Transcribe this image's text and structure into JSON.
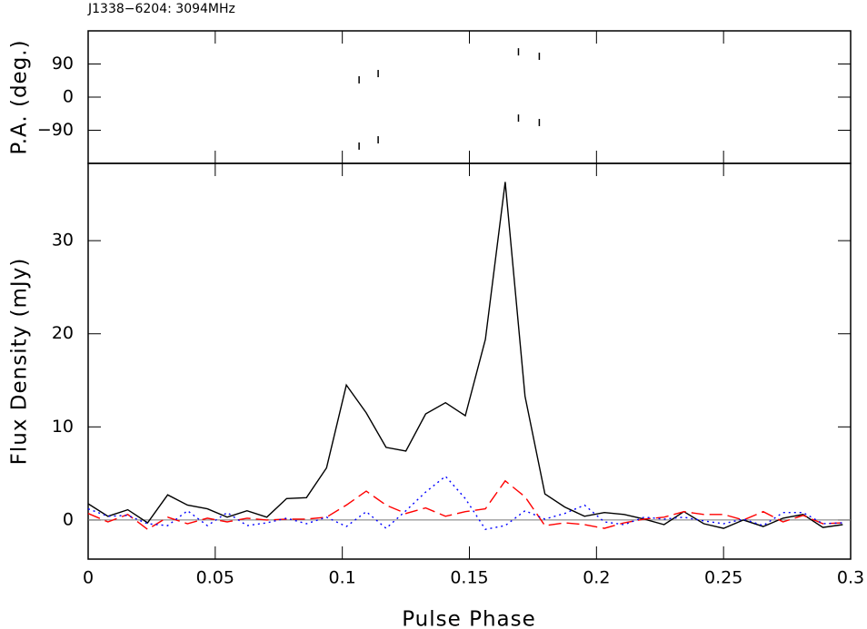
{
  "chart_data": [
    {
      "type": "scatter",
      "title": "J1338−6204: 3094MHz",
      "ylabel": "P.A. (deg.)",
      "x": [
        0.1066,
        0.1066,
        0.1141,
        0.1141,
        0.1693,
        0.1693,
        0.1775,
        0.1775
      ],
      "values": [
        47,
        -133,
        64,
        -116,
        123,
        -57,
        111,
        -69
      ],
      "color": "#000000",
      "xlim": [
        0,
        0.3
      ],
      "xticks": [
        0,
        0.05,
        0.1,
        0.15,
        0.2,
        0.25,
        0.3
      ],
      "ylim": [
        -180,
        180
      ],
      "yticks": [
        {
          "value": -90,
          "label": "−90"
        },
        0,
        90
      ]
    },
    {
      "type": "line",
      "xlabel": "Pulse Phase",
      "ylabel": "Flux Density (mJy)",
      "x": [
        0,
        0.0078,
        0.0156,
        0.0234,
        0.0313,
        0.0391,
        0.0469,
        0.0547,
        0.0625,
        0.0703,
        0.0781,
        0.0859,
        0.0938,
        0.1016,
        0.1094,
        0.1172,
        0.125,
        0.1328,
        0.1406,
        0.1484,
        0.1563,
        0.1641,
        0.1719,
        0.1797,
        0.1875,
        0.1953,
        0.2031,
        0.2109,
        0.2188,
        0.2266,
        0.2344,
        0.2422,
        0.25,
        0.2578,
        0.2656,
        0.2734,
        0.2813,
        0.2891,
        0.2969
      ],
      "series": [
        {
          "color": "#000000",
          "style": "solid",
          "values": [
            1.75,
            0.4,
            1.1,
            -0.3,
            2.7,
            1.6,
            1.2,
            0.3,
            1.0,
            0.3,
            2.3,
            2.4,
            5.6,
            14.5,
            11.5,
            7.8,
            7.4,
            11.4,
            12.6,
            11.2,
            19.4,
            36.3,
            13.3,
            2.8,
            1.4,
            0.4,
            0.8,
            0.6,
            0.1,
            -0.5,
            0.9,
            -0.4,
            -0.9,
            0,
            -0.7,
            0.2,
            0.6,
            -0.8,
            -0.5
          ]
        },
        {
          "color": "#ff0000",
          "style": "dashed",
          "values": [
            0.7,
            -0.2,
            0.6,
            -1.0,
            0.3,
            -0.4,
            0.2,
            -0.2,
            0.2,
            0,
            0.1,
            0.1,
            0.3,
            1.6,
            3.1,
            1.6,
            0.7,
            1.3,
            0.4,
            0.9,
            1.2,
            4.2,
            2.5,
            -0.6,
            -0.3,
            -0.5,
            -0.9,
            -0.3,
            0.1,
            0.3,
            0.9,
            0.6,
            0.6,
            0,
            0.9,
            -0.2,
            0.5,
            -0.4,
            -0.3
          ]
        },
        {
          "color": "#0000ff",
          "style": "dotted",
          "values": [
            1.2,
            0.4,
            0.5,
            -0.4,
            -0.6,
            1.0,
            -0.6,
            0.8,
            -0.6,
            -0.3,
            0.2,
            -0.4,
            0.3,
            -0.7,
            0.9,
            -0.9,
            1.0,
            3.0,
            4.7,
            2.3,
            -1.0,
            -0.6,
            1.0,
            0.1,
            0.7,
            1.6,
            -0.2,
            -0.5,
            0.3,
            0.1,
            0.3,
            -0.1,
            -0.4,
            0.1,
            -0.6,
            0.8,
            0.8,
            -0.4,
            -0.3
          ]
        }
      ],
      "zero_line": true,
      "xlim": [
        0,
        0.3
      ],
      "xticks": [
        0,
        0.05,
        0.1,
        0.15,
        0.2,
        0.25,
        0.3
      ],
      "ylim": [
        -4.2,
        38.3
      ],
      "yticks": [
        0,
        10,
        20,
        30
      ]
    }
  ]
}
